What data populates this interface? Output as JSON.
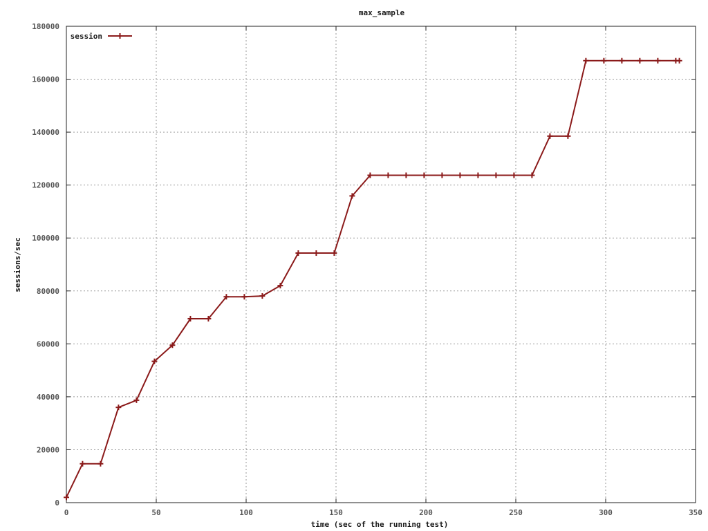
{
  "chart_data": {
    "type": "line",
    "title": "max_sample",
    "xlabel": "time (sec of the running test)",
    "ylabel": "sessions/sec",
    "xlim": [
      0,
      350
    ],
    "ylim": [
      0,
      180000
    ],
    "xticks": [
      0,
      50,
      100,
      150,
      200,
      250,
      300,
      350
    ],
    "xtick_labels": [
      "0",
      "50",
      "100",
      "150",
      "200",
      "250",
      "300",
      "350"
    ],
    "yticks": [
      0,
      20000,
      40000,
      60000,
      80000,
      100000,
      120000,
      140000,
      160000,
      180000
    ],
    "ytick_labels": [
      "0",
      "20000",
      "40000",
      "60000",
      "80000",
      "100000",
      "120000",
      "140000",
      "160000",
      "180000"
    ],
    "grid": true,
    "legend_position": "top-left",
    "series": [
      {
        "name": "session",
        "color": "#8b1a1a",
        "marker": "plus",
        "x": [
          0,
          9,
          19,
          29,
          39,
          49,
          59,
          69,
          79,
          89,
          99,
          109,
          119,
          129,
          139,
          149,
          159,
          169,
          179,
          189,
          199,
          209,
          219,
          229,
          239,
          249,
          259,
          269,
          279,
          289,
          299,
          309,
          319,
          329,
          339,
          341
        ],
        "y": [
          2000,
          14700,
          14700,
          36000,
          38700,
          53400,
          59500,
          69500,
          69500,
          77800,
          77800,
          78100,
          82000,
          94300,
          94300,
          94300,
          115900,
          123700,
          123700,
          123700,
          123700,
          123700,
          123700,
          123700,
          123700,
          123700,
          123700,
          138500,
          138500,
          167000,
          167000,
          167000,
          167000,
          167000,
          167000,
          167000
        ]
      }
    ]
  }
}
